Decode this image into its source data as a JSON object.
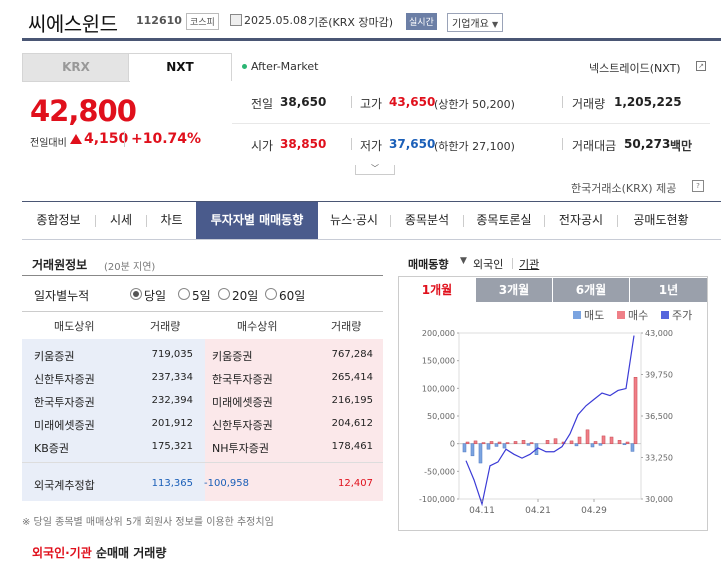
{
  "header": {
    "name": "씨에스윈드",
    "code": "112610",
    "market_badge": "코스피",
    "date": "2025.05.08",
    "date_label": "기준(KRX 장마감)",
    "realtime_badge": "실시간",
    "company_button": "기업개요"
  },
  "market_tabs": [
    "KRX",
    "NXT"
  ],
  "after_market": "After-Market",
  "nextrade_label": "넥스트레이드(NXT)",
  "price": {
    "current": "42,800",
    "change_label": "전일대비",
    "change": "4,150",
    "change_pct": "+10.74%"
  },
  "stats": {
    "prev_label": "전일",
    "prev": "38,650",
    "high_label": "고가",
    "high": "43,650",
    "upper_limit": "(상한가 50,200)",
    "volume_label": "거래량",
    "volume": "1,205,225",
    "open_label": "시가",
    "open": "38,850",
    "low_label": "저가",
    "low": "37,650",
    "lower_limit": "(하한가 27,100)",
    "amount_label": "거래대금",
    "amount": "50,273",
    "amount_unit": "백만"
  },
  "krx_source": "한국거래소(KRX) 제공",
  "nav": [
    "종합정보",
    "시세",
    "차트",
    "투자자별 매매동향",
    "뉴스·공시",
    "종목분석",
    "종목토론실",
    "전자공시",
    "공매도현황"
  ],
  "broker": {
    "title": "거래원정보",
    "delay": "(20분 지연)",
    "accum_label": "일자별누적",
    "radios": [
      "당일",
      "5일",
      "20일",
      "60일"
    ],
    "headers": [
      "매도상위",
      "거래량",
      "매수상위",
      "거래량"
    ],
    "rows": [
      {
        "sell": "키움증권",
        "sell_vol": "719,035",
        "buy": "키움증권",
        "buy_vol": "767,284"
      },
      {
        "sell": "신한투자증권",
        "sell_vol": "237,334",
        "buy": "한국투자증권",
        "buy_vol": "265,414"
      },
      {
        "sell": "한국투자증권",
        "sell_vol": "232,394",
        "buy": "미래에셋증권",
        "buy_vol": "216,195"
      },
      {
        "sell": "미래에셋증권",
        "sell_vol": "201,912",
        "buy": "신한투자증권",
        "buy_vol": "204,612"
      },
      {
        "sell": "KB증권",
        "sell_vol": "175,321",
        "buy": "NH투자증권",
        "buy_vol": "178,461"
      }
    ],
    "foreign": {
      "label": "외국계추정합",
      "sell": "113,365",
      "net": "-100,958",
      "buy": "12,407"
    },
    "note": "※ 당일 종목별 매매상위 5개 회원사 정보를 이용한 추정치임"
  },
  "trend": {
    "title": "매매동향",
    "foreign_label": "외국인",
    "inst_label": "기관",
    "periods": [
      "1개월",
      "3개월",
      "6개월",
      "1년"
    ],
    "legend": [
      "매도",
      "매수",
      "주가"
    ]
  },
  "bottom_title_a": "외국인·기관",
  "bottom_title_b": "순매매 거래량",
  "colors": {
    "up": "#e0101c",
    "down": "#1b5fb8",
    "nav_active": "#4a5b8c",
    "sell_bar": "#6f95d6",
    "buy_bar": "#e8626c",
    "price_line": "#3b3bd6"
  },
  "chart_data": {
    "type": "bar",
    "x_ticks": [
      "04.11",
      "04.21",
      "04.29"
    ],
    "ylim_left": [
      -100000,
      200000
    ],
    "y_ticks_left": [
      "200,000",
      "150,000",
      "100,000",
      "50,000",
      "0",
      "-50,000",
      "-100,000"
    ],
    "ylim_right": [
      30000,
      43000
    ],
    "y_ticks_right": [
      "43,000",
      "39,750",
      "36,500",
      "33,250",
      "30,000"
    ],
    "series": [
      {
        "name": "매도",
        "values": [
          -15000,
          -22000,
          -35000,
          -10000,
          -5000,
          -8000,
          0,
          0,
          -3000,
          -20000,
          0,
          0,
          0,
          0,
          -4000,
          0,
          -6000,
          -3000,
          0,
          0,
          -2000,
          -14000
        ]
      },
      {
        "name": "매수",
        "values": [
          3000,
          5000,
          2000,
          4000,
          3000,
          2000,
          4000,
          6000,
          2000,
          0,
          6000,
          9000,
          3000,
          5000,
          12000,
          25000,
          4000,
          14000,
          12000,
          6000,
          3000,
          120000
        ]
      },
      {
        "name": "주가",
        "values": [
          33000,
          31500,
          29600,
          32600,
          32900,
          33900,
          33500,
          33200,
          33500,
          34000,
          33700,
          33700,
          34100,
          35100,
          36600,
          37300,
          37800,
          38300,
          38100,
          38500,
          38650,
          42800
        ]
      }
    ]
  }
}
